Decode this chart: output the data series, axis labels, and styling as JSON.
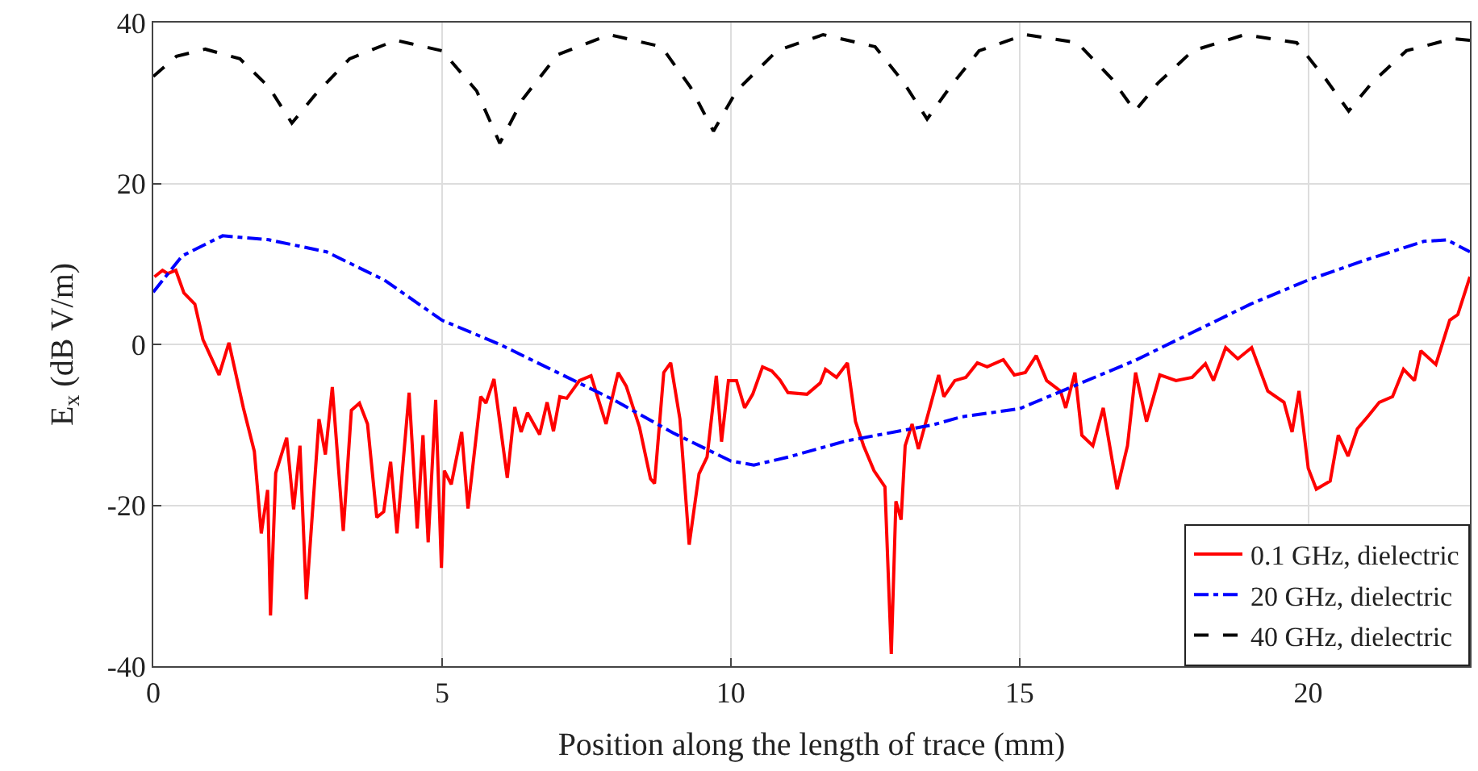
{
  "chart_data": {
    "type": "line",
    "xlabel": "Position along the length of trace (mm)",
    "ylabel": "E$_{x}$ (dB V/m)",
    "xlim": [
      0,
      22.8
    ],
    "xticks": [
      0,
      5,
      10,
      15,
      20
    ],
    "ylim": [
      -40,
      40
    ],
    "yticks": [
      -40,
      -20,
      0,
      20,
      40
    ],
    "grid": true,
    "legend": "bottom right",
    "marker": "none",
    "series": [
      {
        "name": "0.1 GHz, dielectric",
        "color": "#ff0000",
        "line_style": "solid",
        "x": [
          0.02,
          0.16,
          0.25,
          0.39,
          0.53,
          0.72,
          0.86,
          1.14,
          1.31,
          1.56,
          1.75,
          1.87,
          1.98,
          2.03,
          2.12,
          2.31,
          2.43,
          2.54,
          2.65,
          2.87,
          2.98,
          3.1,
          3.29,
          3.43,
          3.57,
          3.71,
          3.87,
          3.99,
          4.11,
          4.22,
          4.43,
          4.57,
          4.67,
          4.76,
          4.89,
          4.99,
          5.04,
          5.16,
          5.34,
          5.45,
          5.67,
          5.76,
          5.9,
          6.13,
          6.26,
          6.37,
          6.48,
          6.69,
          6.82,
          6.93,
          7.04,
          7.16,
          7.38,
          7.58,
          7.84,
          8.05,
          8.19,
          8.42,
          8.61,
          8.68,
          8.84,
          8.96,
          9.12,
          9.28,
          9.45,
          9.59,
          9.75,
          9.84,
          9.96,
          10.1,
          10.24,
          10.38,
          10.55,
          10.71,
          10.85,
          10.99,
          11.32,
          11.55,
          11.64,
          11.83,
          12.02,
          12.16,
          12.3,
          12.48,
          12.67,
          12.78,
          12.86,
          12.95,
          13.02,
          13.14,
          13.25,
          13.42,
          13.6,
          13.69,
          13.88,
          14.07,
          14.27,
          14.44,
          14.72,
          14.91,
          15.1,
          15.29,
          15.47,
          15.71,
          15.8,
          15.96,
          16.08,
          16.27,
          16.45,
          16.69,
          16.87,
          17.01,
          17.2,
          17.43,
          17.71,
          17.99,
          18.22,
          18.36,
          18.57,
          18.78,
          19.02,
          19.3,
          19.58,
          19.72,
          19.84,
          20.0,
          20.14,
          20.38,
          20.52,
          20.69,
          20.85,
          21.04,
          21.23,
          21.46,
          21.65,
          21.84,
          21.95,
          22.21,
          22.45,
          22.59,
          22.8
        ],
        "values": [
          8.4,
          9.2,
          8.8,
          9.2,
          6.4,
          5.0,
          0.6,
          -3.8,
          0.2,
          -7.9,
          -13.3,
          -23.5,
          -18.1,
          -33.7,
          -16.0,
          -11.6,
          -20.5,
          -12.6,
          -31.7,
          -9.3,
          -13.7,
          -5.3,
          -23.2,
          -8.2,
          -7.3,
          -9.9,
          -21.5,
          -20.8,
          -14.6,
          -23.5,
          -6.0,
          -22.9,
          -11.3,
          -24.6,
          -6.9,
          -27.8,
          -15.7,
          -17.4,
          -10.9,
          -20.4,
          -6.5,
          -7.3,
          -4.3,
          -16.6,
          -7.8,
          -10.9,
          -8.5,
          -11.2,
          -7.2,
          -10.8,
          -6.5,
          -6.7,
          -4.5,
          -3.9,
          -9.9,
          -3.5,
          -5.2,
          -10.3,
          -16.7,
          -17.3,
          -3.5,
          -2.3,
          -9.3,
          -24.9,
          -16.1,
          -14.0,
          -3.9,
          -12.1,
          -4.5,
          -4.5,
          -7.9,
          -6.2,
          -2.8,
          -3.3,
          -4.4,
          -6.0,
          -6.2,
          -4.8,
          -3.1,
          -4.1,
          -2.3,
          -9.6,
          -12.6,
          -15.7,
          -17.7,
          -38.5,
          -19.5,
          -21.8,
          -12.6,
          -9.9,
          -13.0,
          -8.6,
          -3.8,
          -6.5,
          -4.5,
          -4.1,
          -2.3,
          -2.8,
          -1.9,
          -3.8,
          -3.5,
          -1.4,
          -4.5,
          -5.8,
          -7.9,
          -3.5,
          -11.3,
          -12.6,
          -7.9,
          -18.0,
          -12.6,
          -3.5,
          -9.6,
          -3.8,
          -4.5,
          -4.1,
          -2.4,
          -4.5,
          -0.4,
          -1.8,
          -0.4,
          -5.8,
          -7.2,
          -10.9,
          -5.8,
          -15.4,
          -18.0,
          -17.0,
          -11.3,
          -13.9,
          -10.5,
          -8.9,
          -7.2,
          -6.5,
          -3.1,
          -4.5,
          -0.8,
          -2.5,
          3.0,
          3.7,
          8.4
        ]
      },
      {
        "name": "20 GHz, dielectric",
        "color": "#0000ff",
        "line_style": "dashdot",
        "x": [
          0,
          0.5,
          1.2,
          2,
          3,
          4,
          5,
          6,
          7,
          8,
          9,
          10,
          10.4,
          11,
          12,
          13.5,
          14,
          15,
          16,
          17,
          18,
          19,
          20,
          21,
          22,
          22.4,
          22.8
        ],
        "values": [
          6.5,
          11,
          13.5,
          13,
          11.5,
          8,
          3,
          0,
          -3.5,
          -7,
          -11,
          -14.5,
          -15,
          -14,
          -12,
          -10,
          -9,
          -8,
          -5,
          -2,
          1.5,
          5,
          8,
          10.5,
          12.8,
          13,
          11.5
        ]
      },
      {
        "name": "40 GHz, dielectric",
        "color": "#000000",
        "line_style": "dashed",
        "x": [
          0,
          0.4,
          0.9,
          1.5,
          2,
          2.4,
          2.8,
          3.4,
          4.2,
          5,
          5.6,
          6,
          6.4,
          7,
          7.9,
          8.8,
          9.3,
          9.7,
          10.1,
          10.8,
          11.6,
          12.5,
          13,
          13.4,
          13.8,
          14.3,
          15.1,
          16,
          16.6,
          17,
          17.4,
          18,
          18.9,
          19.8,
          20.3,
          20.7,
          21.1,
          21.7,
          22.5,
          22.8
        ],
        "values": [
          33.3,
          35.8,
          36.7,
          35.5,
          32,
          27.5,
          31,
          35.5,
          37.8,
          36.5,
          31.5,
          25,
          30.5,
          36,
          38.5,
          37,
          32,
          26.5,
          31.5,
          36.5,
          38.5,
          37,
          32.5,
          28,
          32,
          36.5,
          38.5,
          37.5,
          33,
          29,
          32.5,
          36.5,
          38.5,
          37.5,
          33,
          29,
          32.5,
          36.5,
          38,
          37.8
        ]
      }
    ]
  }
}
